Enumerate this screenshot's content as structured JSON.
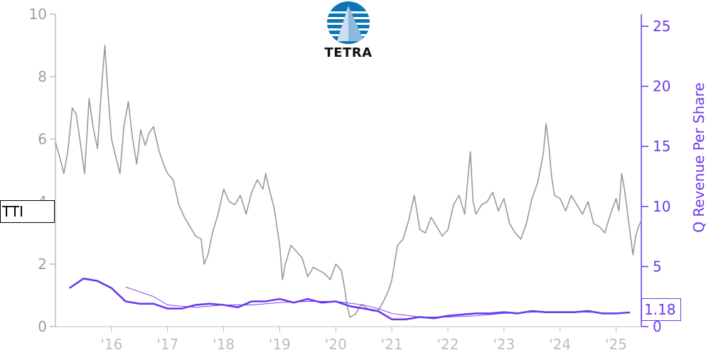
{
  "logo": {
    "text": "TETRA",
    "colors": {
      "primary": "#0a76b5",
      "accent": "#8fb8dc"
    }
  },
  "ticker": {
    "label": "TTI"
  },
  "colors": {
    "price": "#999999",
    "revenue": "#6a3ce8",
    "axis_left": "#9e9e9e",
    "axis_x": "#bdbdbd"
  },
  "chart_data": {
    "type": "line",
    "x_ticks": [
      "'16",
      "'17",
      "'18",
      "'19",
      "'20",
      "'21",
      "'22",
      "'23",
      "'24",
      "'25"
    ],
    "x_range": [
      2015.0,
      2025.45
    ],
    "y_left": {
      "range": [
        0,
        10
      ],
      "ticks": [
        "0",
        "2",
        "4",
        "6",
        "8",
        "10"
      ]
    },
    "y_right": {
      "label": "Q Revenue Per Share",
      "range": [
        0,
        26
      ],
      "ticks": [
        "0",
        "5",
        "10",
        "15",
        "20",
        "25"
      ]
    },
    "last_value": "1.18",
    "series": [
      {
        "axis": "left",
        "points": [
          [
            2015.0,
            5.9
          ],
          [
            2015.08,
            5.4
          ],
          [
            2015.15,
            4.9
          ],
          [
            2015.22,
            5.6
          ],
          [
            2015.3,
            7.0
          ],
          [
            2015.37,
            6.8
          ],
          [
            2015.45,
            5.8
          ],
          [
            2015.52,
            4.9
          ],
          [
            2015.6,
            7.3
          ],
          [
            2015.67,
            6.4
          ],
          [
            2015.75,
            5.7
          ],
          [
            2015.82,
            7.6
          ],
          [
            2015.88,
            9.0
          ],
          [
            2015.94,
            7.4
          ],
          [
            2016.0,
            6.0
          ],
          [
            2016.08,
            5.4
          ],
          [
            2016.15,
            4.9
          ],
          [
            2016.22,
            6.4
          ],
          [
            2016.3,
            7.2
          ],
          [
            2016.37,
            6.1
          ],
          [
            2016.45,
            5.2
          ],
          [
            2016.52,
            6.3
          ],
          [
            2016.6,
            5.8
          ],
          [
            2016.67,
            6.2
          ],
          [
            2016.75,
            6.4
          ],
          [
            2016.85,
            5.6
          ],
          [
            2016.95,
            5.1
          ],
          [
            2017.0,
            4.9
          ],
          [
            2017.1,
            4.7
          ],
          [
            2017.2,
            3.9
          ],
          [
            2017.3,
            3.5
          ],
          [
            2017.4,
            3.2
          ],
          [
            2017.5,
            2.9
          ],
          [
            2017.6,
            2.8
          ],
          [
            2017.65,
            2.0
          ],
          [
            2017.72,
            2.3
          ],
          [
            2017.8,
            3.0
          ],
          [
            2017.9,
            3.6
          ],
          [
            2018.0,
            4.4
          ],
          [
            2018.1,
            4.0
          ],
          [
            2018.2,
            3.9
          ],
          [
            2018.3,
            4.2
          ],
          [
            2018.4,
            3.6
          ],
          [
            2018.5,
            4.3
          ],
          [
            2018.6,
            4.7
          ],
          [
            2018.7,
            4.4
          ],
          [
            2018.75,
            4.9
          ],
          [
            2018.8,
            4.5
          ],
          [
            2018.9,
            3.8
          ],
          [
            2019.0,
            2.6
          ],
          [
            2019.05,
            1.5
          ],
          [
            2019.1,
            2.0
          ],
          [
            2019.2,
            2.6
          ],
          [
            2019.3,
            2.4
          ],
          [
            2019.4,
            2.2
          ],
          [
            2019.5,
            1.6
          ],
          [
            2019.6,
            1.9
          ],
          [
            2019.7,
            1.8
          ],
          [
            2019.8,
            1.7
          ],
          [
            2019.9,
            1.5
          ],
          [
            2020.0,
            2.0
          ],
          [
            2020.1,
            1.8
          ],
          [
            2020.15,
            1.3
          ],
          [
            2020.2,
            0.7
          ],
          [
            2020.25,
            0.3
          ],
          [
            2020.35,
            0.4
          ],
          [
            2020.45,
            0.7
          ],
          [
            2020.55,
            0.6
          ],
          [
            2020.65,
            0.5
          ],
          [
            2020.75,
            0.5
          ],
          [
            2020.85,
            0.8
          ],
          [
            2020.95,
            1.2
          ],
          [
            2021.0,
            1.5
          ],
          [
            2021.1,
            2.6
          ],
          [
            2021.2,
            2.8
          ],
          [
            2021.3,
            3.4
          ],
          [
            2021.4,
            4.2
          ],
          [
            2021.5,
            3.1
          ],
          [
            2021.6,
            3.0
          ],
          [
            2021.7,
            3.5
          ],
          [
            2021.8,
            3.2
          ],
          [
            2021.9,
            2.9
          ],
          [
            2022.0,
            3.1
          ],
          [
            2022.1,
            3.9
          ],
          [
            2022.2,
            4.2
          ],
          [
            2022.3,
            3.6
          ],
          [
            2022.4,
            5.6
          ],
          [
            2022.45,
            4.0
          ],
          [
            2022.5,
            3.6
          ],
          [
            2022.6,
            3.9
          ],
          [
            2022.7,
            4.0
          ],
          [
            2022.8,
            4.3
          ],
          [
            2022.9,
            3.7
          ],
          [
            2023.0,
            4.1
          ],
          [
            2023.1,
            3.3
          ],
          [
            2023.2,
            3.0
          ],
          [
            2023.3,
            2.8
          ],
          [
            2023.4,
            3.3
          ],
          [
            2023.5,
            4.1
          ],
          [
            2023.6,
            4.6
          ],
          [
            2023.7,
            5.5
          ],
          [
            2023.75,
            6.5
          ],
          [
            2023.8,
            5.8
          ],
          [
            2023.85,
            4.8
          ],
          [
            2023.9,
            4.2
          ],
          [
            2024.0,
            4.1
          ],
          [
            2024.1,
            3.7
          ],
          [
            2024.2,
            4.2
          ],
          [
            2024.3,
            3.9
          ],
          [
            2024.4,
            3.6
          ],
          [
            2024.5,
            4.0
          ],
          [
            2024.6,
            3.3
          ],
          [
            2024.7,
            3.2
          ],
          [
            2024.8,
            3.0
          ],
          [
            2024.9,
            3.6
          ],
          [
            2025.0,
            4.1
          ],
          [
            2025.05,
            3.7
          ],
          [
            2025.1,
            4.9
          ],
          [
            2025.15,
            4.4
          ],
          [
            2025.2,
            3.7
          ],
          [
            2025.25,
            3.0
          ],
          [
            2025.3,
            2.3
          ],
          [
            2025.35,
            2.9
          ],
          [
            2025.4,
            3.2
          ],
          [
            2025.45,
            3.4
          ]
        ]
      },
      {
        "axis": "right",
        "points": [
          [
            2015.25,
            3.2
          ],
          [
            2015.5,
            4.0
          ],
          [
            2015.75,
            3.8
          ],
          [
            2016.0,
            3.2
          ],
          [
            2016.25,
            2.1
          ],
          [
            2016.5,
            1.9
          ],
          [
            2016.75,
            1.9
          ],
          [
            2017.0,
            1.5
          ],
          [
            2017.25,
            1.5
          ],
          [
            2017.5,
            1.8
          ],
          [
            2017.75,
            1.9
          ],
          [
            2018.0,
            1.8
          ],
          [
            2018.25,
            1.6
          ],
          [
            2018.5,
            2.1
          ],
          [
            2018.75,
            2.1
          ],
          [
            2019.0,
            2.3
          ],
          [
            2019.25,
            2.0
          ],
          [
            2019.5,
            2.3
          ],
          [
            2019.75,
            2.0
          ],
          [
            2020.0,
            2.1
          ],
          [
            2020.25,
            1.7
          ],
          [
            2020.5,
            1.5
          ],
          [
            2020.75,
            1.3
          ],
          [
            2021.0,
            0.6
          ],
          [
            2021.25,
            0.6
          ],
          [
            2021.5,
            0.8
          ],
          [
            2021.75,
            0.7
          ],
          [
            2022.0,
            0.9
          ],
          [
            2022.25,
            1.0
          ],
          [
            2022.5,
            1.1
          ],
          [
            2022.75,
            1.1
          ],
          [
            2023.0,
            1.2
          ],
          [
            2023.25,
            1.1
          ],
          [
            2023.5,
            1.3
          ],
          [
            2023.75,
            1.2
          ],
          [
            2024.0,
            1.2
          ],
          [
            2024.25,
            1.2
          ],
          [
            2024.5,
            1.3
          ],
          [
            2024.75,
            1.1
          ],
          [
            2025.0,
            1.1
          ],
          [
            2025.25,
            1.18
          ]
        ]
      },
      {
        "axis": "right",
        "points": [
          [
            2016.25,
            3.3
          ],
          [
            2016.75,
            2.5
          ],
          [
            2017.0,
            1.8
          ],
          [
            2017.5,
            1.6
          ],
          [
            2018.0,
            1.8
          ],
          [
            2018.5,
            1.8
          ],
          [
            2019.0,
            2.0
          ],
          [
            2019.5,
            2.1
          ],
          [
            2020.0,
            2.1
          ],
          [
            2020.5,
            1.8
          ],
          [
            2020.75,
            1.5
          ],
          [
            2021.0,
            1.1
          ],
          [
            2021.5,
            0.8
          ],
          [
            2022.0,
            0.8
          ],
          [
            2022.5,
            0.9
          ],
          [
            2023.0,
            1.1
          ],
          [
            2023.5,
            1.2
          ],
          [
            2024.0,
            1.2
          ],
          [
            2024.5,
            1.2
          ],
          [
            2025.0,
            1.1
          ],
          [
            2025.25,
            1.2
          ]
        ]
      }
    ]
  }
}
